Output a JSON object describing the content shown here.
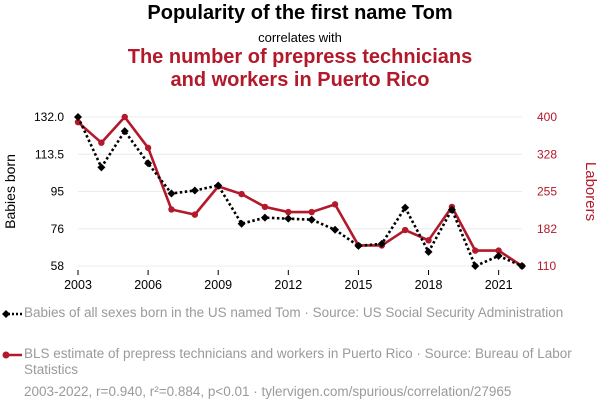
{
  "title_line1": "Popularity of the first name Tom",
  "title_connector": "correlates with",
  "title_line2a": "The number of prepress technicians",
  "title_line2b": "and workers in Puerto Rico",
  "colors": {
    "series1": "#000000",
    "series2": "#b3192a",
    "axis_text": "#000000",
    "legend_text": "#9a9a9a"
  },
  "chart_data": {
    "type": "line",
    "x": [
      2003,
      2004,
      2005,
      2006,
      2007,
      2008,
      2009,
      2010,
      2011,
      2012,
      2013,
      2014,
      2015,
      2016,
      2017,
      2018,
      2019,
      2020,
      2021,
      2022
    ],
    "x_ticks": [
      "2003",
      "2006",
      "2009",
      "2012",
      "2015",
      "2018",
      "2021"
    ],
    "xlim": [
      2003,
      2022
    ],
    "series": [
      {
        "name": "Babies of all sexes born in the US named Tom",
        "axis": "left",
        "style": "dotted",
        "marker": "diamond",
        "values": [
          132,
          107,
          125,
          109,
          94,
          95.5,
          98,
          79,
          82,
          81.5,
          81,
          76,
          68,
          69,
          87,
          65,
          86,
          58,
          63,
          58
        ]
      },
      {
        "name": "BLS estimate of prepress technicians and workers in Puerto Rico",
        "axis": "right",
        "style": "solid",
        "marker": "circle",
        "values": [
          390,
          350,
          400,
          340,
          220,
          210,
          265,
          250,
          225,
          215,
          215,
          230,
          150,
          150,
          180,
          160,
          225,
          140,
          140,
          110
        ]
      }
    ],
    "y_left": {
      "label": "Babies born",
      "ticks": [
        "132.0",
        "113.5",
        "95",
        "76",
        "58"
      ],
      "lim": [
        58,
        132
      ]
    },
    "y_right": {
      "label": "Laborers",
      "ticks": [
        "400",
        "328",
        "255",
        "182",
        "110"
      ],
      "lim": [
        110,
        400
      ]
    }
  },
  "legend": {
    "item1": "Babies of all sexes born in the US named Tom · Source: US Social Security Administration",
    "item2": "BLS estimate of prepress technicians and workers in Puerto Rico · Source: Bureau of Labor Statistics"
  },
  "footer": "2003-2022, r=0.940, r²=0.884, p<0.01 · tylervigen.com/spurious/correlation/27965"
}
